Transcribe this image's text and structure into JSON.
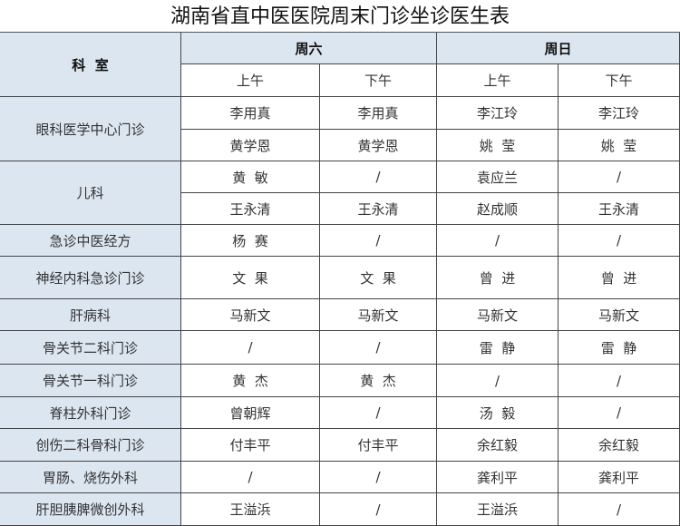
{
  "title": "湖南省直中医医院周末门诊坐诊医生表",
  "colors": {
    "header_bg": "#dce6f1",
    "border": "#444444"
  },
  "header": {
    "dept_label": "科  室",
    "days": [
      {
        "label": "周六",
        "sessions": [
          "上午",
          "下午"
        ]
      },
      {
        "label": "周日",
        "sessions": [
          "上午",
          "下午"
        ]
      }
    ]
  },
  "departments": [
    {
      "name": "眼科医学中心门诊",
      "rows": [
        [
          "李用真",
          "李用真",
          "李江玲",
          "李江玲"
        ],
        [
          "黄学恩",
          "黄学恩",
          "姚  莹",
          "姚  莹"
        ]
      ]
    },
    {
      "name": "儿科",
      "rows": [
        [
          "黄  敏",
          "/",
          "袁应兰",
          "/"
        ],
        [
          "王永清",
          "王永清",
          "赵成顺",
          "王永清"
        ]
      ]
    },
    {
      "name": "急诊中医经方",
      "rows": [
        [
          "杨  赛",
          "/",
          "/",
          "/"
        ]
      ]
    },
    {
      "name": "神经内科急诊门诊",
      "rows": [
        [
          "文  果",
          "文  果",
          "曾  进",
          "曾  进"
        ]
      ]
    },
    {
      "name": "肝病科",
      "rows": [
        [
          "马新文",
          "马新文",
          "马新文",
          "马新文"
        ]
      ]
    },
    {
      "name": "骨关节二科门诊",
      "rows": [
        [
          "/",
          "/",
          "雷  静",
          "雷  静"
        ]
      ]
    },
    {
      "name": "骨关节一科门诊",
      "rows": [
        [
          "黄  杰",
          "黄  杰",
          "/",
          "/"
        ]
      ]
    },
    {
      "name": "脊柱外科门诊",
      "rows": [
        [
          "曾朝辉",
          "/",
          "汤  毅",
          "/"
        ]
      ]
    },
    {
      "name": "创伤二科骨科门诊",
      "rows": [
        [
          "付丰平",
          "付丰平",
          "余红毅",
          "余红毅"
        ]
      ]
    },
    {
      "name": "胃肠、烧伤外科",
      "rows": [
        [
          "/",
          "/",
          "龚利平",
          "龚利平"
        ]
      ]
    },
    {
      "name": "肝胆胰脾微创外科",
      "rows": [
        [
          "王溢浜",
          "/",
          "王溢浜",
          "/"
        ]
      ]
    }
  ]
}
